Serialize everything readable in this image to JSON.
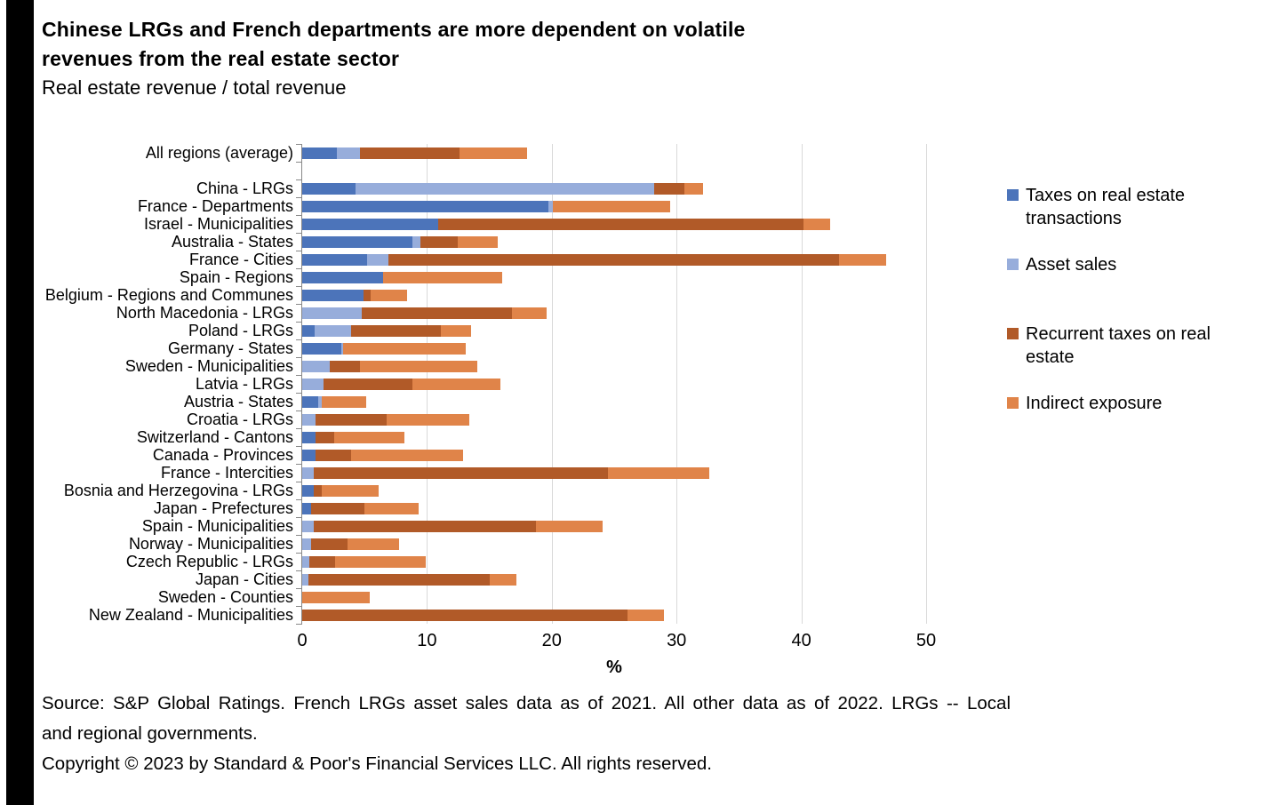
{
  "header": {
    "title_line1": "Chinese LRGs and French departments are more dependent on volatile",
    "title_line2": "revenues from the real estate sector",
    "subtitle": "Real estate revenue / total revenue"
  },
  "chart_data": {
    "type": "bar",
    "orientation": "horizontal",
    "stacked": true,
    "title": "Chinese LRGs and French departments are more dependent on volatile revenues from the real estate sector",
    "subtitle": "Real estate revenue / total revenue",
    "xlabel": "%",
    "xlim": [
      0,
      50
    ],
    "x_ticks": [
      0,
      10,
      20,
      30,
      40,
      50
    ],
    "grid": true,
    "legend_position": "right",
    "gap_after_first_category": true,
    "categories": [
      "All regions (average)",
      "China - LRGs",
      "France - Departments",
      "Israel - Municipalities",
      "Australia - States",
      "France - Cities",
      "Spain - Regions",
      "Belgium - Regions and Communes",
      "North Macedonia - LRGs",
      "Poland - LRGs",
      "Germany - States",
      "Sweden - Municipalities",
      "Latvia - LRGs",
      "Austria - States",
      "Croatia - LRGs",
      "Switzerland - Cantons",
      "Canada - Provinces",
      "France - Intercities",
      "Bosnia and Herzegovina - LRGs",
      "Japan - Prefectures",
      "Spain - Municipalities",
      "Norway - Municipalities",
      "Czech Republic - LRGs",
      "Japan - Cities",
      "Sweden - Counties",
      "New Zealand - Municipalities"
    ],
    "series": [
      {
        "name": "Taxes on real estate transactions",
        "color": "#4C74BA",
        "values": [
          2.8,
          4.3,
          19.7,
          10.9,
          8.8,
          5.2,
          6.5,
          4.9,
          0,
          1.0,
          3.1,
          0,
          0,
          1.3,
          0,
          1.1,
          1.1,
          0,
          0.9,
          0.7,
          0,
          0,
          0,
          0,
          0,
          0
        ]
      },
      {
        "name": "Asset sales",
        "color": "#97ADDB",
        "values": [
          1.8,
          23.9,
          0.4,
          0,
          0.7,
          1.7,
          0,
          0,
          4.8,
          2.9,
          0.2,
          2.2,
          1.7,
          0.3,
          1.1,
          0,
          0,
          0.9,
          0,
          0,
          0.9,
          0.7,
          0.6,
          0.5,
          0,
          0
        ]
      },
      {
        "name": "Recurrent taxes on real estate",
        "color": "#B15A28",
        "values": [
          8.0,
          2.4,
          0,
          29.3,
          3.0,
          36.1,
          0,
          0.6,
          12.0,
          7.2,
          0,
          2.4,
          7.1,
          0,
          5.7,
          1.5,
          2.8,
          23.6,
          0.7,
          4.3,
          17.8,
          2.9,
          2.0,
          14.5,
          0,
          26.1
        ]
      },
      {
        "name": "Indirect exposure",
        "color": "#E08449",
        "values": [
          5.4,
          1.5,
          9.4,
          2.1,
          3.2,
          3.8,
          9.5,
          2.9,
          2.8,
          2.4,
          9.8,
          9.4,
          7.1,
          3.5,
          6.6,
          5.6,
          9.0,
          8.1,
          4.5,
          4.3,
          5.4,
          4.2,
          7.3,
          2.2,
          5.4,
          2.9
        ]
      }
    ]
  },
  "footer": {
    "source_line1": "Source: S&P Global Ratings. French LRGs asset sales data as of 2021. All other data as of 2022. LRGs -- Local",
    "source_line2": "and regional governments.",
    "copyright": "Copyright © 2023 by Standard & Poor's Financial Services LLC. All rights reserved."
  }
}
